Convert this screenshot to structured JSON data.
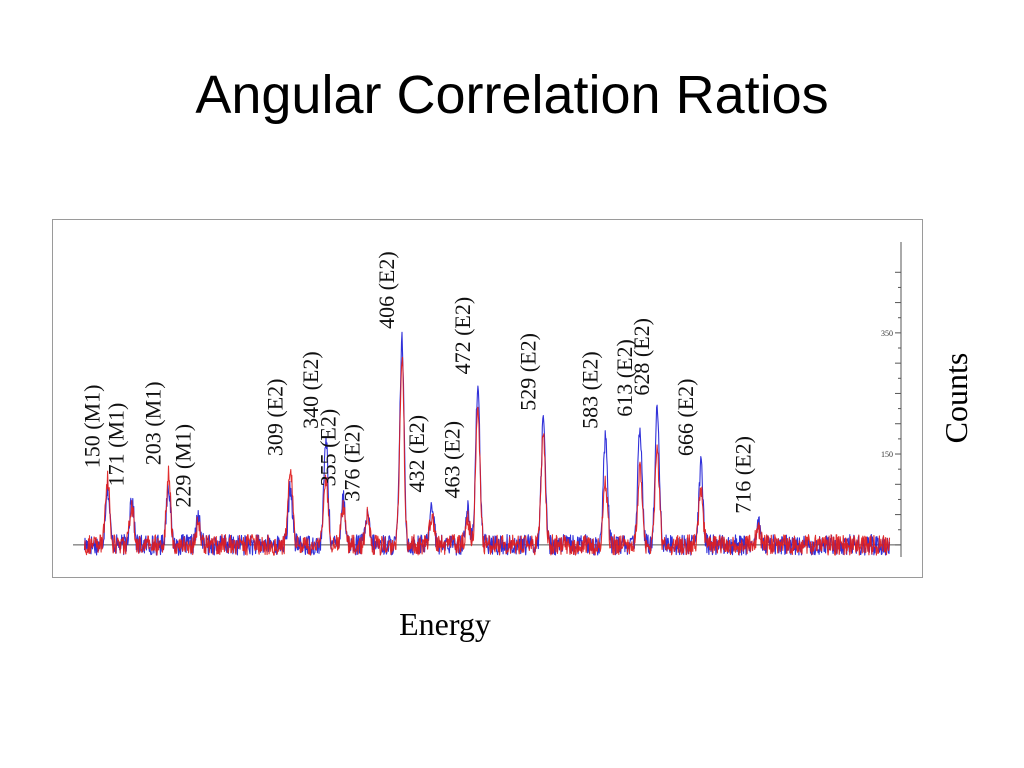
{
  "title": "Angular Correlation Ratios",
  "chart_data": {
    "type": "line",
    "xlabel": "Energy",
    "ylabel": "Counts",
    "xlim": [
      120,
      840
    ],
    "ylim": [
      -20,
      500
    ],
    "y_ticks": [
      150,
      350
    ],
    "grid": false,
    "series": [
      {
        "color": "#1f1fd6"
      },
      {
        "color": "#e01d1d"
      }
    ],
    "peaks": [
      {
        "label": "150 (M1)",
        "energy": 150,
        "blue": 95,
        "red": 110
      },
      {
        "label": "171 (M1)",
        "energy": 171,
        "blue": 80,
        "red": 62
      },
      {
        "label": "203 (M1)",
        "energy": 203,
        "blue": 100,
        "red": 115
      },
      {
        "label": "229 (M1)",
        "energy": 229,
        "blue": 45,
        "red": 35
      },
      {
        "label": "309 (E2)",
        "energy": 309,
        "blue": 95,
        "red": 130
      },
      {
        "label": "340 (E2)",
        "energy": 340,
        "blue": 175,
        "red": 110
      },
      {
        "label": "355 (E2)",
        "energy": 355,
        "blue": 80,
        "red": 65
      },
      {
        "label": "376 (E2)",
        "energy": 376,
        "blue": 45,
        "red": 55
      },
      {
        "label": "406 (E2)",
        "energy": 406,
        "blue": 340,
        "red": 310
      },
      {
        "label": "432 (E2)",
        "energy": 432,
        "blue": 70,
        "red": 45
      },
      {
        "label": "463 (E2)",
        "energy": 463,
        "blue": 60,
        "red": 45
      },
      {
        "label": "472 (E2)",
        "energy": 472,
        "blue": 265,
        "red": 225
      },
      {
        "label": "529 (E2)",
        "energy": 529,
        "blue": 205,
        "red": 180
      },
      {
        "label": "583 (E2)",
        "energy": 583,
        "blue": 175,
        "red": 100
      },
      {
        "label": "613 (E2)",
        "energy": 613,
        "blue": 195,
        "red": 130
      },
      {
        "label": "628 (E2)",
        "energy": 628,
        "blue": 230,
        "red": 150
      },
      {
        "label": "666 (E2)",
        "energy": 666,
        "blue": 130,
        "red": 95
      },
      {
        "label": "716 (E2)",
        "energy": 716,
        "blue": 35,
        "red": 25
      }
    ]
  }
}
